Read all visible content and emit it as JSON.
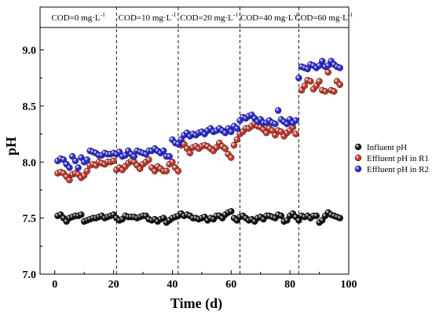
{
  "chart_data": {
    "type": "scatter",
    "xlabel": "Time (d)",
    "ylabel": "pH",
    "xlim": [
      -5,
      100
    ],
    "ylim": [
      7.0,
      9.2
    ],
    "xticks": [
      "0",
      "20",
      "40",
      "60",
      "80",
      "100"
    ],
    "yticks": [
      "7.0",
      "7.5",
      "8.0",
      "8.5",
      "9.0"
    ],
    "phase_boundaries": [
      21,
      42,
      63,
      83
    ],
    "phases": [
      {
        "label": "COD=0 mg·L",
        "sup": "-1"
      },
      {
        "label": "COD=10 mg·L",
        "sup": "-1"
      },
      {
        "label": "COD=20 mg·L",
        "sup": "-1"
      },
      {
        "label": "COD=40 mg·L",
        "sup": "-1"
      },
      {
        "label": "COD=60 mg·L",
        "sup": "-1"
      }
    ],
    "legend_position": "right",
    "series": [
      {
        "name": "Influent pH",
        "color": "#111111",
        "x": [
          1,
          2,
          3,
          4,
          5,
          6,
          7,
          8,
          9,
          10,
          11,
          12,
          13,
          14,
          15,
          16,
          17,
          18,
          19,
          20,
          21,
          22,
          23,
          24,
          25,
          26,
          27,
          28,
          29,
          30,
          31,
          32,
          33,
          34,
          35,
          36,
          37,
          38,
          39,
          40,
          41,
          42,
          43,
          44,
          45,
          46,
          47,
          48,
          49,
          50,
          51,
          52,
          53,
          54,
          55,
          56,
          57,
          58,
          59,
          60,
          61,
          62,
          63,
          64,
          65,
          66,
          67,
          68,
          69,
          70,
          71,
          72,
          73,
          74,
          75,
          76,
          77,
          78,
          79,
          80,
          81,
          82,
          83,
          84,
          85,
          86,
          87,
          88,
          89,
          90,
          91,
          92,
          93,
          94,
          95,
          96,
          97
        ],
        "y": [
          7.52,
          7.53,
          7.5,
          7.47,
          7.5,
          7.51,
          7.52,
          7.52,
          7.53,
          7.47,
          7.48,
          7.49,
          7.5,
          7.5,
          7.51,
          7.52,
          7.5,
          7.51,
          7.52,
          7.53,
          7.5,
          7.48,
          7.49,
          7.52,
          7.51,
          7.51,
          7.51,
          7.5,
          7.51,
          7.52,
          7.52,
          7.49,
          7.48,
          7.49,
          7.47,
          7.49,
          7.5,
          7.46,
          7.48,
          7.5,
          7.51,
          7.52,
          7.54,
          7.52,
          7.53,
          7.52,
          7.5,
          7.5,
          7.49,
          7.5,
          7.51,
          7.48,
          7.5,
          7.49,
          7.52,
          7.52,
          7.5,
          7.53,
          7.55,
          7.56,
          7.5,
          7.48,
          7.51,
          7.52,
          7.5,
          7.48,
          7.49,
          7.47,
          7.5,
          7.51,
          7.49,
          7.52,
          7.52,
          7.51,
          7.5,
          7.53,
          7.52,
          7.47,
          7.48,
          7.52,
          7.54,
          7.51,
          7.48,
          7.52,
          7.51,
          7.52,
          7.5,
          7.52,
          7.52,
          7.46,
          7.48,
          7.52,
          7.55,
          7.53,
          7.52,
          7.51,
          7.5
        ]
      },
      {
        "name": "Effluent pH in R1",
        "color": "#c0392b",
        "x": [
          1,
          2,
          3,
          4,
          5,
          6,
          7,
          8,
          9,
          10,
          11,
          12,
          13,
          14,
          15,
          16,
          17,
          18,
          19,
          20,
          21,
          22,
          23,
          24,
          25,
          26,
          27,
          28,
          29,
          30,
          31,
          32,
          33,
          34,
          35,
          36,
          37,
          38,
          39,
          40,
          41,
          42,
          43,
          44,
          45,
          46,
          47,
          48,
          49,
          50,
          51,
          52,
          53,
          54,
          55,
          56,
          57,
          58,
          59,
          60,
          61,
          62,
          63,
          64,
          65,
          66,
          67,
          68,
          69,
          70,
          71,
          72,
          73,
          74,
          75,
          76,
          77,
          78,
          79,
          80,
          81,
          82,
          84,
          85,
          86,
          87,
          88,
          89,
          90,
          91,
          92,
          93,
          94,
          95,
          96,
          97
        ],
        "y": [
          7.9,
          7.91,
          7.9,
          7.87,
          7.84,
          7.89,
          7.9,
          7.89,
          7.86,
          7.88,
          7.92,
          7.97,
          7.98,
          7.97,
          8.0,
          7.99,
          7.98,
          8.0,
          8.0,
          8.01,
          7.93,
          7.95,
          7.93,
          7.96,
          7.99,
          8.01,
          8.0,
          7.97,
          7.94,
          7.98,
          8.0,
          8.02,
          7.95,
          7.92,
          7.96,
          7.94,
          7.92,
          7.92,
          7.98,
          8.0,
          7.95,
          7.92,
          8.15,
          8.16,
          8.12,
          8.08,
          8.13,
          8.14,
          8.12,
          8.14,
          8.15,
          8.14,
          8.12,
          8.1,
          8.13,
          8.17,
          8.14,
          8.12,
          8.07,
          8.04,
          8.15,
          8.2,
          8.25,
          8.27,
          8.3,
          8.3,
          8.32,
          8.34,
          8.32,
          8.31,
          8.29,
          8.26,
          8.3,
          8.28,
          8.24,
          8.28,
          8.27,
          8.23,
          8.26,
          8.28,
          8.31,
          8.25,
          8.64,
          8.68,
          8.73,
          8.72,
          8.65,
          8.68,
          8.72,
          8.64,
          8.63,
          8.8,
          8.64,
          8.63,
          8.72,
          8.69
        ]
      },
      {
        "name": "Effluent pH in R2",
        "color": "#2a2ad6",
        "x": [
          1,
          2,
          3,
          4,
          5,
          6,
          7,
          8,
          9,
          10,
          11,
          12,
          13,
          14,
          15,
          16,
          17,
          18,
          19,
          20,
          21,
          22,
          23,
          24,
          25,
          26,
          27,
          28,
          29,
          30,
          31,
          32,
          33,
          34,
          35,
          36,
          37,
          38,
          39,
          40,
          41,
          42,
          43,
          44,
          45,
          46,
          47,
          48,
          49,
          50,
          51,
          52,
          53,
          54,
          55,
          56,
          57,
          58,
          59,
          60,
          61,
          62,
          63,
          64,
          65,
          66,
          67,
          68,
          69,
          70,
          71,
          72,
          73,
          74,
          75,
          76,
          77,
          78,
          79,
          80,
          81,
          82,
          83,
          84,
          85,
          86,
          87,
          88,
          89,
          90,
          91,
          92,
          93,
          94,
          95,
          96,
          97
        ],
        "y": [
          8.01,
          8.03,
          8.02,
          7.98,
          7.95,
          8.05,
          8.01,
          7.95,
          8.04,
          8.0,
          8.02,
          8.1,
          8.09,
          8.08,
          8.06,
          8.06,
          8.08,
          8.07,
          8.07,
          8.08,
          8.07,
          8.09,
          8.05,
          8.06,
          8.1,
          8.07,
          8.05,
          8.1,
          8.09,
          8.08,
          8.07,
          8.1,
          8.1,
          8.12,
          8.1,
          8.08,
          8.1,
          8.05,
          8.05,
          8.2,
          8.17,
          8.16,
          8.2,
          8.24,
          8.26,
          8.23,
          8.25,
          8.24,
          8.26,
          8.27,
          8.25,
          8.28,
          8.3,
          8.27,
          8.28,
          8.3,
          8.28,
          8.26,
          8.3,
          8.27,
          8.32,
          8.3,
          8.37,
          8.4,
          8.39,
          8.41,
          8.42,
          8.39,
          8.36,
          8.38,
          8.35,
          8.35,
          8.37,
          8.35,
          8.34,
          8.46,
          8.38,
          8.36,
          8.34,
          8.38,
          8.35,
          8.37,
          8.75,
          8.85,
          8.84,
          8.83,
          8.87,
          8.86,
          8.84,
          8.86,
          8.9,
          8.85,
          8.86,
          8.9,
          8.87,
          8.85,
          8.84
        ]
      }
    ]
  }
}
